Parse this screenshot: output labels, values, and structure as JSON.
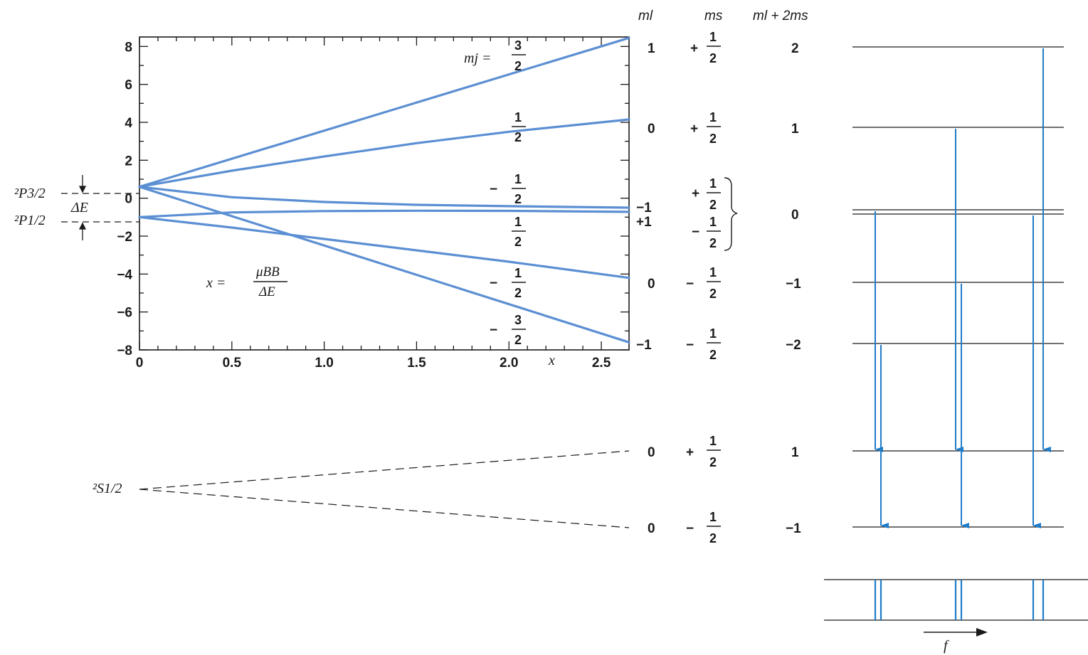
{
  "chart_data": {
    "type": "line",
    "xlabel": "x",
    "formula": {
      "lhs": "x =",
      "numerator": "μBB",
      "denominator": "ΔE"
    },
    "xlim": [
      0,
      2.65
    ],
    "ylim": [
      -8,
      8.5
    ],
    "x_ticks": [
      "0",
      "0.5",
      "1.0",
      "1.5",
      "2.0",
      "2.5"
    ],
    "x_tick_values": [
      0,
      0.5,
      1.0,
      1.5,
      2.0,
      2.5
    ],
    "y_ticks": [
      "8",
      "6",
      "4",
      "2",
      "0",
      "−2",
      "−4",
      "−6",
      "−8"
    ],
    "y_tick_values": [
      8,
      6,
      4,
      2,
      0,
      -2,
      -4,
      -6,
      -8
    ],
    "series": [
      {
        "mj": "3/2",
        "x": [
          0,
          2.65
        ],
        "y": [
          0.6,
          8.45
        ]
      },
      {
        "mj": "1/2",
        "x": [
          0,
          0.5,
          1.0,
          1.5,
          2.0,
          2.65
        ],
        "y": [
          0.6,
          1.45,
          2.2,
          2.9,
          3.5,
          4.15
        ]
      },
      {
        "mj": "-1/2",
        "x": [
          0,
          0.5,
          1.0,
          1.5,
          2.0,
          2.65
        ],
        "y": [
          0.6,
          0.05,
          -0.2,
          -0.35,
          -0.42,
          -0.5
        ]
      },
      {
        "mj": "1/2",
        "x": [
          0,
          0.5,
          1.0,
          1.5,
          2.0,
          2.65
        ],
        "y": [
          -1.0,
          -0.75,
          -0.68,
          -0.66,
          -0.67,
          -0.72
        ]
      },
      {
        "mj": "-1/2",
        "x": [
          0,
          0.5,
          1.0,
          1.5,
          2.0,
          2.65
        ],
        "y": [
          -1.0,
          -1.55,
          -2.15,
          -2.75,
          -3.35,
          -4.2
        ]
      },
      {
        "mj": "-3/2",
        "x": [
          0,
          2.65
        ],
        "y": [
          0.6,
          -7.6
        ]
      }
    ],
    "mj_labels": [
      {
        "prefix": "mj =",
        "sign": "",
        "num": "3",
        "den": "2"
      },
      {
        "prefix": "",
        "sign": "",
        "num": "1",
        "den": "2"
      },
      {
        "prefix": "",
        "sign": "−",
        "num": "1",
        "den": "2"
      },
      {
        "prefix": "",
        "sign": "",
        "num": "1",
        "den": "2"
      },
      {
        "prefix": "",
        "sign": "−",
        "num": "1",
        "den": "2"
      },
      {
        "prefix": "",
        "sign": "−",
        "num": "3",
        "den": "2"
      }
    ],
    "level_names": {
      "p32": "²P3/2",
      "p12": "²P1/2",
      "s12": "²S1/2",
      "delta": "ΔE"
    }
  },
  "headers": {
    "ml": "ml",
    "ms": "ms",
    "sum": "ml + 2ms"
  },
  "p_levels": [
    {
      "ml": "1",
      "ms_sign": "+",
      "ms_num": "1",
      "ms_den": "2",
      "sum": "2"
    },
    {
      "ml": "0",
      "ms_sign": "+",
      "ms_num": "1",
      "ms_den": "2",
      "sum": "1"
    },
    {
      "ml": "−1",
      "ms_sign": "+",
      "ms_num": "1",
      "ms_den": "2",
      "sum": "0"
    },
    {
      "ml": "+1",
      "ms_sign": "−",
      "ms_num": "1",
      "ms_den": "2",
      "sum": ""
    },
    {
      "ml": "0",
      "ms_sign": "−",
      "ms_num": "1",
      "ms_den": "2",
      "sum": "−1"
    },
    {
      "ml": "−1",
      "ms_sign": "−",
      "ms_num": "1",
      "ms_den": "2",
      "sum": "−2"
    }
  ],
  "s_levels": [
    {
      "ml": "0",
      "ms_sign": "+",
      "ms_num": "1",
      "ms_den": "2",
      "sum": "1"
    },
    {
      "ml": "0",
      "ms_sign": "−",
      "ms_num": "1",
      "ms_den": "2",
      "sum": "−1"
    }
  ],
  "spectrum_axis_label": "f",
  "colors": {
    "curve": "#5b8fd3",
    "arrow": "#1f7cc9",
    "ink": "#1a1a1a"
  }
}
